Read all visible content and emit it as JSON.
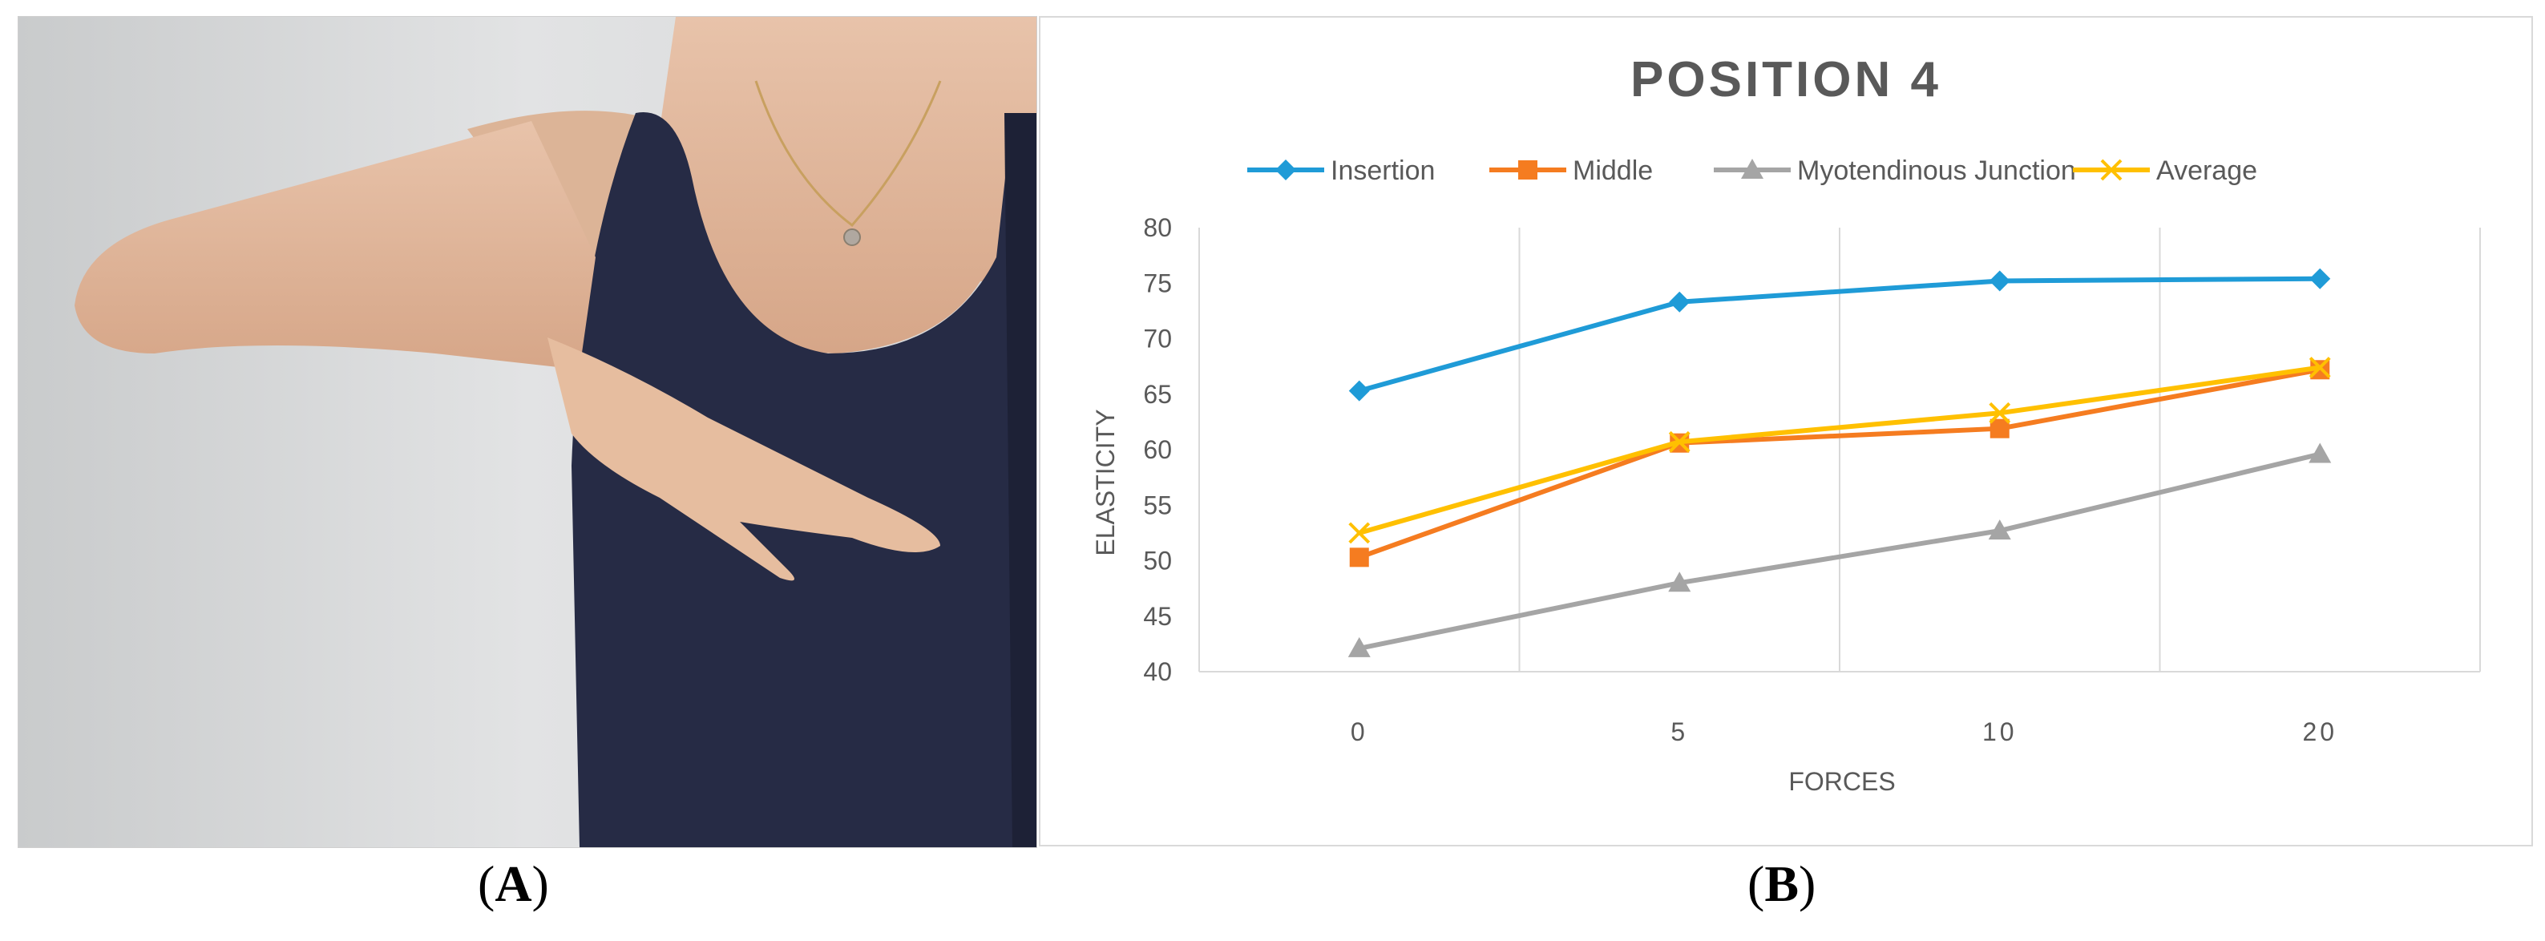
{
  "panels": {
    "a_label": "A",
    "b_label": "B"
  },
  "chart_data": {
    "type": "line",
    "title": "POSITION 4",
    "xlabel": "FORCES",
    "ylabel": "ELASTICITY",
    "categories": [
      "0",
      "5",
      "10",
      "20"
    ],
    "ylim": [
      40,
      80
    ],
    "yticks": [
      40,
      45,
      50,
      55,
      60,
      65,
      70,
      75,
      80
    ],
    "grid": "vertical",
    "legend_position": "top",
    "series": [
      {
        "name": "Insertion",
        "values": [
          65.3,
          73.3,
          75.2,
          75.4
        ],
        "color": "#1f9bd7",
        "marker": "diamond"
      },
      {
        "name": "Middle",
        "values": [
          50.3,
          60.6,
          61.9,
          67.2
        ],
        "color": "#f57c20",
        "marker": "square"
      },
      {
        "name": "Myotendinous Junction",
        "values": [
          42.1,
          48.0,
          52.7,
          59.6
        ],
        "color": "#a5a5a5",
        "marker": "triangle"
      },
      {
        "name": "Average",
        "values": [
          52.5,
          60.7,
          63.3,
          67.4
        ],
        "color": "#ffc000",
        "marker": "x"
      }
    ]
  }
}
